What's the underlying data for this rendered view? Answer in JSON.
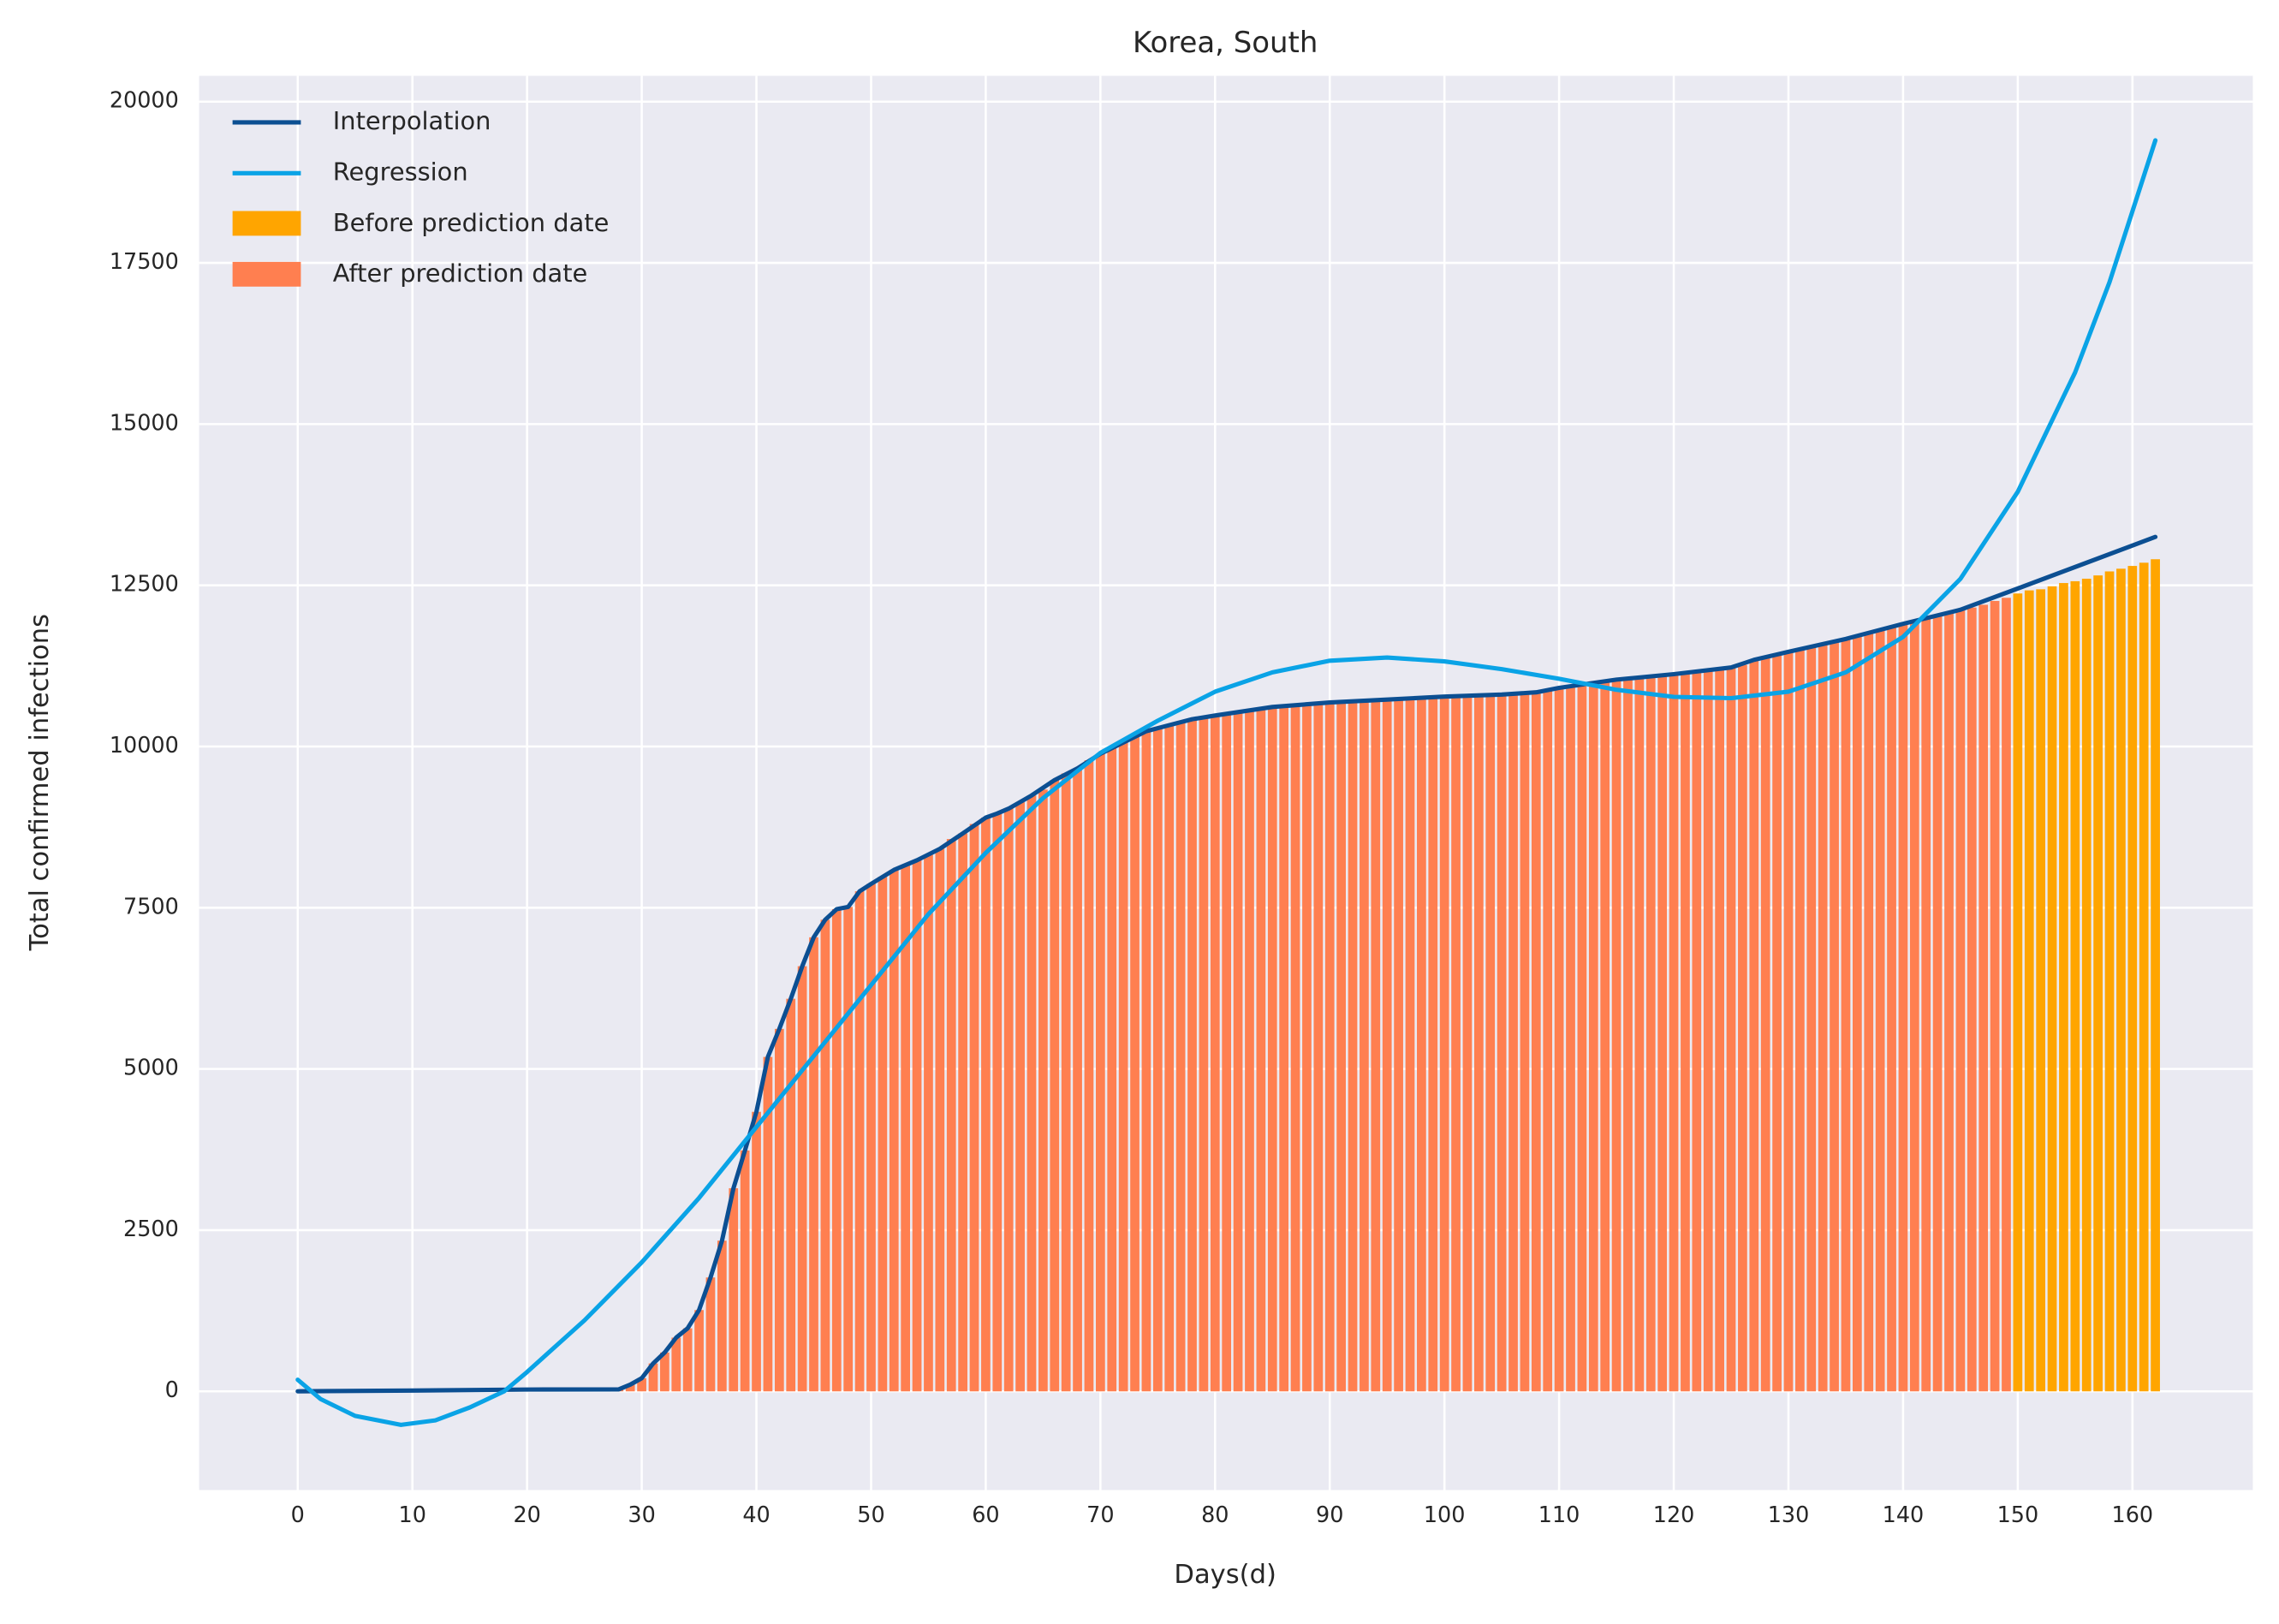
{
  "chart_data": {
    "type": "bar",
    "title": "Korea, South",
    "x_label": "Days(d)",
    "y_label": "Total confirmed infections",
    "xlim": [
      -8.6,
      170.5
    ],
    "ylim": [
      -1530,
      20400
    ],
    "xticks": [
      0,
      10,
      20,
      30,
      40,
      50,
      60,
      70,
      80,
      90,
      100,
      110,
      120,
      130,
      140,
      150,
      160
    ],
    "yticks": [
      0,
      2500,
      5000,
      7500,
      10000,
      12500,
      15000,
      17500,
      20000
    ],
    "grid": true,
    "legend": "upper left",
    "background": "#eaeaf2",
    "series": [
      {
        "name": "Interpolation",
        "type": "line",
        "color": "#0c4f92",
        "x": [
          0,
          10,
          20,
          28,
          29,
          30,
          31,
          32,
          33,
          34,
          35,
          36,
          37,
          38,
          39,
          40,
          41,
          42,
          43,
          44,
          45,
          46,
          47,
          48,
          49,
          50,
          52,
          54,
          56,
          58,
          60,
          61,
          62,
          64,
          66,
          68,
          70,
          72,
          74,
          76,
          78,
          80,
          85,
          90,
          95,
          100,
          105,
          108,
          110,
          115,
          120,
          125,
          127,
          130,
          135,
          140,
          145,
          150,
          156,
          162
        ],
        "values": [
          1,
          12,
          28,
          31,
          104,
          204,
          433,
          602,
          833,
          977,
          1261,
          1766,
          2337,
          3150,
          3736,
          4335,
          5186,
          5621,
          6088,
          6593,
          7041,
          7314,
          7478,
          7513,
          7755,
          7869,
          8086,
          8236,
          8413,
          8652,
          8897,
          8961,
          9037,
          9241,
          9478,
          9661,
          9887,
          10062,
          10237,
          10331,
          10423,
          10480,
          10613,
          10683,
          10728,
          10774,
          10806,
          10840,
          10909,
          11037,
          11122,
          11225,
          11344,
          11468,
          11668,
          11902,
          12121,
          12450,
          12850,
          13250
        ]
      },
      {
        "name": "Regression",
        "type": "line",
        "color": "#0aa3e6",
        "x": [
          0,
          2,
          5,
          9,
          12,
          15,
          18,
          20,
          25,
          30,
          35,
          40,
          45,
          50,
          55,
          60,
          65,
          70,
          75,
          80,
          85,
          90,
          95,
          100,
          105,
          110,
          115,
          120,
          125,
          130,
          135,
          140,
          145,
          150,
          155,
          158,
          162
        ],
        "values": [
          180,
          -120,
          -380,
          -520,
          -450,
          -250,
          0,
          300,
          1100,
          2000,
          3000,
          4100,
          5200,
          6300,
          7400,
          8350,
          9200,
          9900,
          10400,
          10850,
          11150,
          11330,
          11380,
          11320,
          11200,
          11050,
          10880,
          10770,
          10750,
          10850,
          11150,
          11700,
          12600,
          13950,
          15800,
          17200,
          19400
        ]
      },
      {
        "name": "Before prediction date",
        "type": "bar",
        "color": "#ffa500",
        "x": [
          150,
          151,
          152,
          153,
          154,
          155,
          156,
          157,
          158,
          159,
          160,
          161,
          162
        ],
        "values": [
          12373,
          12421,
          12438,
          12484,
          12535,
          12563,
          12602,
          12653,
          12715,
          12757,
          12800,
          12850,
          12904
        ]
      },
      {
        "name": "After prediction date",
        "type": "bar",
        "color": "#ff7f50",
        "x": [
          0,
          1,
          2,
          3,
          4,
          5,
          6,
          7,
          8,
          9,
          10,
          11,
          12,
          13,
          14,
          15,
          16,
          17,
          18,
          19,
          20,
          21,
          22,
          23,
          24,
          25,
          26,
          27,
          28,
          29,
          30,
          31,
          32,
          33,
          34,
          35,
          36,
          37,
          38,
          39,
          40,
          41,
          42,
          43,
          44,
          45,
          46,
          47,
          48,
          49,
          50,
          51,
          52,
          53,
          54,
          55,
          56,
          57,
          58,
          59,
          60,
          61,
          62,
          63,
          64,
          65,
          66,
          67,
          68,
          69,
          70,
          71,
          72,
          73,
          74,
          75,
          76,
          77,
          78,
          79,
          80,
          81,
          82,
          83,
          84,
          85,
          86,
          87,
          88,
          89,
          90,
          91,
          92,
          93,
          94,
          95,
          96,
          97,
          98,
          99,
          100,
          101,
          102,
          103,
          104,
          105,
          106,
          107,
          108,
          109,
          110,
          111,
          112,
          113,
          114,
          115,
          116,
          117,
          118,
          119,
          120,
          121,
          122,
          123,
          124,
          125,
          126,
          127,
          128,
          129,
          130,
          131,
          132,
          133,
          134,
          135,
          136,
          137,
          138,
          139,
          140,
          141,
          142,
          143,
          144,
          145,
          146,
          147,
          148,
          149
        ],
        "values": [
          1,
          1,
          2,
          2,
          3,
          4,
          4,
          4,
          4,
          11,
          12,
          15,
          15,
          16,
          19,
          23,
          24,
          24,
          25,
          27,
          28,
          28,
          28,
          28,
          28,
          29,
          30,
          31,
          31,
          104,
          204,
          433,
          602,
          833,
          977,
          1261,
          1766,
          2337,
          3150,
          3736,
          4335,
          5186,
          5621,
          6088,
          6593,
          7041,
          7314,
          7478,
          7513,
          7755,
          7869,
          7979,
          8086,
          8162,
          8236,
          8320,
          8413,
          8565,
          8652,
          8799,
          8897,
          8961,
          9037,
          9137,
          9241,
          9332,
          9478,
          9583,
          9661,
          9786,
          9887,
          9976,
          10062,
          10156,
          10237,
          10284,
          10331,
          10384,
          10423,
          10450,
          10480,
          10512,
          10537,
          10564,
          10591,
          10613,
          10635,
          10653,
          10661,
          10674,
          10683,
          10694,
          10702,
          10708,
          10718,
          10728,
          10738,
          10752,
          10761,
          10765,
          10774,
          10780,
          10793,
          10801,
          10804,
          10806,
          10810,
          10822,
          10840,
          10874,
          10909,
          10936,
          10962,
          10991,
          11018,
          11037,
          11050,
          11065,
          11078,
          11110,
          11122,
          11142,
          11165,
          11190,
          11206,
          11225,
          11265,
          11344,
          11402,
          11441,
          11468,
          11503,
          11541,
          11590,
          11629,
          11668,
          11719,
          11776,
          11814,
          11852,
          11902,
          11947,
          12003,
          12051,
          12085,
          12121,
          12155,
          12198,
          12257,
          12306
        ]
      }
    ]
  }
}
